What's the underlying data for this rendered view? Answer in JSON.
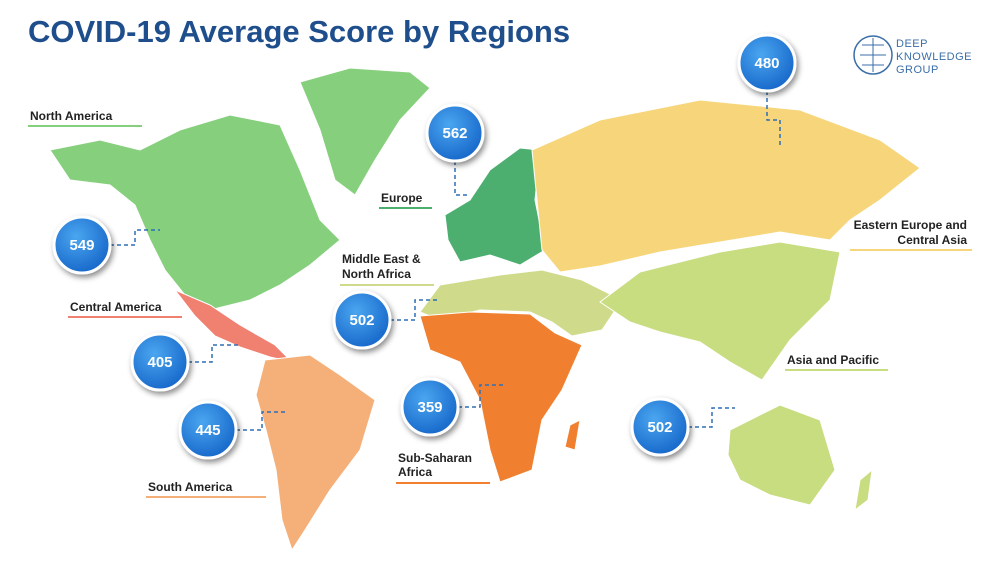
{
  "header": {
    "title": "COVID-19 Average Score by Regions"
  },
  "logo": {
    "lines": [
      "DEEP",
      "KNOWLEDGE",
      "GROUP"
    ]
  },
  "regions": [
    {
      "label": [
        "North America"
      ],
      "score": 549
    },
    {
      "label": [
        "Central America"
      ],
      "score": 405
    },
    {
      "label": [
        "South America"
      ],
      "score": 445
    },
    {
      "label": [
        "Europe"
      ],
      "score": 562
    },
    {
      "label": [
        "Middle East &",
        "North Africa"
      ],
      "score": 502
    },
    {
      "label": [
        "Sub-Saharan",
        "Africa"
      ],
      "score": 359
    },
    {
      "label": [
        "Eastern Europe and",
        "Central Asia"
      ],
      "score": 480
    },
    {
      "label": [
        "Asia and Pacific"
      ],
      "score": 502
    }
  ]
}
